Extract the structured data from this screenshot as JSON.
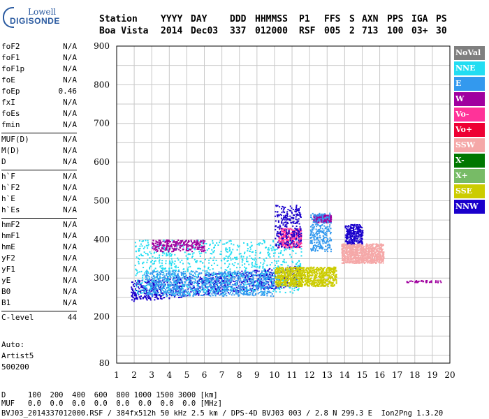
{
  "logo": {
    "line1": "Lowell",
    "line2": "DIGISONDE"
  },
  "header": {
    "labels": [
      "Station",
      "YYYY",
      "DAY",
      "DDD",
      "HHMMSS",
      "P1",
      "FFS",
      "S",
      "AXN",
      "PPS",
      "IGA",
      "PS"
    ],
    "values": [
      "Boa Vista",
      "2014",
      "Dec03",
      "337",
      "012000",
      "RSF",
      "005",
      "2",
      "713",
      "100",
      "03+",
      "30"
    ]
  },
  "params": {
    "group1": [
      {
        "k": "foF2",
        "v": "N/A"
      },
      {
        "k": "foF1",
        "v": "N/A"
      },
      {
        "k": "foF1p",
        "v": "N/A"
      },
      {
        "k": "foE",
        "v": "N/A"
      },
      {
        "k": "foEp",
        "v": "0.46"
      },
      {
        "k": "fxI",
        "v": "N/A"
      },
      {
        "k": "foEs",
        "v": "N/A"
      },
      {
        "k": "fmin",
        "v": "N/A"
      }
    ],
    "group2": [
      {
        "k": "MUF(D)",
        "v": "N/A"
      },
      {
        "k": "M(D)",
        "v": "N/A"
      },
      {
        "k": "D",
        "v": "N/A"
      }
    ],
    "group3": [
      {
        "k": "h`F",
        "v": "N/A"
      },
      {
        "k": "h`F2",
        "v": "N/A"
      },
      {
        "k": "h`E",
        "v": "N/A"
      },
      {
        "k": "h`Es",
        "v": "N/A"
      }
    ],
    "group4": [
      {
        "k": "hmF2",
        "v": "N/A"
      },
      {
        "k": "hmF1",
        "v": "N/A"
      },
      {
        "k": "hmE",
        "v": "N/A"
      },
      {
        "k": "yF2",
        "v": "N/A"
      },
      {
        "k": "yF1",
        "v": "N/A"
      },
      {
        "k": "yE",
        "v": "N/A"
      },
      {
        "k": "B0",
        "v": "N/A"
      },
      {
        "k": "B1",
        "v": "N/A"
      }
    ],
    "group5": [
      {
        "k": "C-level",
        "v": "44"
      }
    ]
  },
  "auto": {
    "line1": "Auto:",
    "line2": "Artist5",
    "line3": "500200"
  },
  "legend": [
    {
      "label": "NoVal",
      "color": "#7f7f7f"
    },
    {
      "label": "NNE",
      "color": "#22ddf2"
    },
    {
      "label": "E",
      "color": "#3399ee"
    },
    {
      "label": "W",
      "color": "#a0009f"
    },
    {
      "label": "Vo-",
      "color": "#ff3399"
    },
    {
      "label": "Vo+",
      "color": "#ee0033"
    },
    {
      "label": "SSW",
      "color": "#f5a8a8"
    },
    {
      "label": "X-",
      "color": "#007700"
    },
    {
      "label": "X+",
      "color": "#77bb66"
    },
    {
      "label": "SSE",
      "color": "#cccc00"
    },
    {
      "label": "NNW",
      "color": "#1a00cc"
    }
  ],
  "footer": {
    "row1": "D     100  200  400  600  800 1000 1500 3000 [km]",
    "row2": "MUF   0.0  0.0  0.0  0.0  0.0  0.0  0.0  0.0 [MHz]",
    "row3": "BVJ03_2014337012000.RSF / 384fx512h 50 kHz 2.5 km / DPS-4D BVJ03 003 / 2.8 N 299.3 E  Ion2Png 1.3.20"
  },
  "chart_data": {
    "type": "scatter",
    "xlim": [
      1,
      20
    ],
    "x_ticks": [
      1,
      2,
      3,
      4,
      5,
      6,
      7,
      8,
      9,
      10,
      11,
      12,
      13,
      14,
      15,
      16,
      17,
      18,
      19,
      20
    ],
    "ylim": [
      80,
      900
    ],
    "y_ticks": [
      80,
      200,
      300,
      400,
      500,
      600,
      700,
      800,
      900
    ],
    "grid": true,
    "legend_position": "right",
    "clusters": [
      {
        "series": "NNW",
        "x": [
          1.8,
          11.5
        ],
        "y": [
          240,
          330
        ],
        "density": "high"
      },
      {
        "series": "NNE",
        "x": [
          2.0,
          11.5
        ],
        "y": [
          260,
          400
        ],
        "density": "high"
      },
      {
        "series": "E",
        "x": [
          2.5,
          10.0
        ],
        "y": [
          255,
          320
        ],
        "density": "high"
      },
      {
        "series": "W",
        "x": [
          3.0,
          6.0
        ],
        "y": [
          370,
          400
        ],
        "density": "medium"
      },
      {
        "series": "W",
        "x": [
          12.2,
          13.2
        ],
        "y": [
          445,
          465
        ],
        "density": "medium"
      },
      {
        "series": "Vo-",
        "x": [
          10.2,
          11.5
        ],
        "y": [
          380,
          430
        ],
        "density": "medium"
      },
      {
        "series": "SSW",
        "x": [
          13.8,
          16.2
        ],
        "y": [
          340,
          390
        ],
        "density": "high"
      },
      {
        "series": "SSE",
        "x": [
          10.0,
          13.5
        ],
        "y": [
          280,
          330
        ],
        "density": "high"
      },
      {
        "series": "W",
        "x": [
          17.5,
          19.5
        ],
        "y": [
          290,
          295
        ],
        "density": "low"
      },
      {
        "series": "NNW",
        "x": [
          10.0,
          11.5
        ],
        "y": [
          380,
          490
        ],
        "density": "medium"
      },
      {
        "series": "E",
        "x": [
          12.0,
          13.2
        ],
        "y": [
          370,
          470
        ],
        "density": "medium"
      },
      {
        "series": "NNW",
        "x": [
          14.0,
          15.0
        ],
        "y": [
          390,
          440
        ],
        "density": "medium"
      }
    ]
  }
}
